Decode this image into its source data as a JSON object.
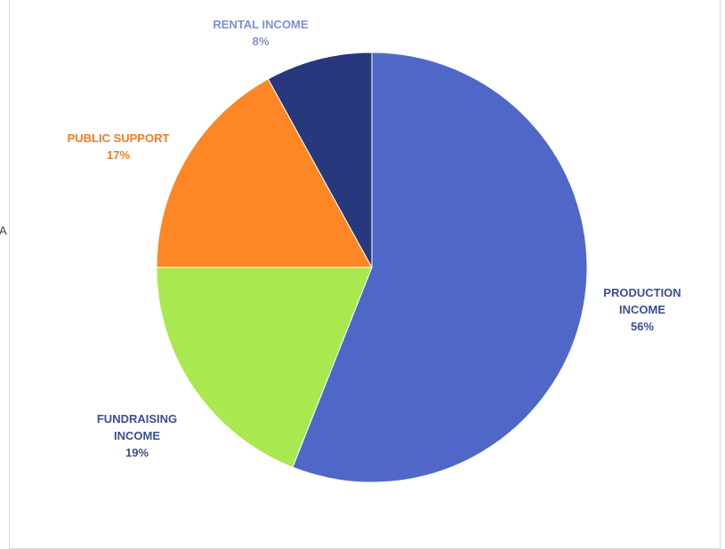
{
  "chart_data": {
    "type": "pie",
    "title": "",
    "categories": [
      "PRODUCTION INCOME",
      "FUNDRAISING INCOME",
      "PUBLIC SUPPORT",
      "RENTAL INCOME"
    ],
    "values": [
      56,
      19,
      17,
      8
    ],
    "percent_labels": [
      "56%",
      "19%",
      "17%",
      "8%"
    ],
    "colors": [
      "#4f68c8",
      "#a9e84e",
      "#fd8724",
      "#27387c"
    ],
    "label_colors": [
      "#3b4d96",
      "#3b4d96",
      "#f47b20",
      "#7f8fd4"
    ],
    "start_angle_deg": 0,
    "direction": "clockwise",
    "legend": "none",
    "labels": {
      "production": {
        "line1": "PRODUCTION",
        "line2": "INCOME",
        "pct": "56%"
      },
      "fundraising": {
        "line1": "FUNDRAISING",
        "line2": "INCOME",
        "pct": "19%"
      },
      "public": {
        "line1": "PUBLIC SUPPORT",
        "pct": "17%"
      },
      "rental": {
        "line1": "RENTAL INCOME",
        "pct": "8%"
      }
    }
  },
  "edge_glyph": "A"
}
